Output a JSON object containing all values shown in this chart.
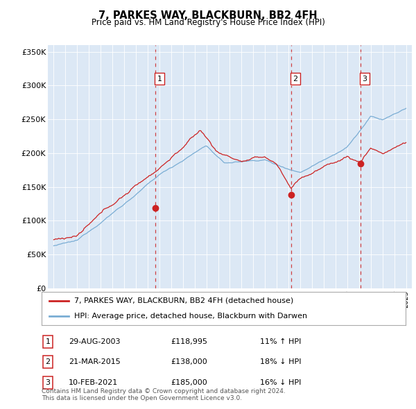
{
  "title": "7, PARKES WAY, BLACKBURN, BB2 4FH",
  "subtitle": "Price paid vs. HM Land Registry's House Price Index (HPI)",
  "ylim": [
    0,
    360000
  ],
  "yticks": [
    0,
    50000,
    100000,
    150000,
    200000,
    250000,
    300000,
    350000
  ],
  "ytick_labels": [
    "£0",
    "£50K",
    "£100K",
    "£150K",
    "£200K",
    "£250K",
    "£300K",
    "£350K"
  ],
  "hpi_color": "#7aadd4",
  "price_color": "#cc2222",
  "transaction_color": "#cc2222",
  "background_chart": "#dce8f5",
  "background_fig": "#ffffff",
  "transactions": [
    {
      "label": "1",
      "date": "29-AUG-2003",
      "price": 118995,
      "pct": "11%",
      "dir": "↑",
      "x_year": 2003.66
    },
    {
      "label": "2",
      "date": "21-MAR-2015",
      "price": 138000,
      "pct": "18%",
      "dir": "↓",
      "x_year": 2015.22
    },
    {
      "label": "3",
      "date": "10-FEB-2021",
      "price": 185000,
      "pct": "16%",
      "dir": "↓",
      "x_year": 2021.12
    }
  ],
  "legend_price_label": "7, PARKES WAY, BLACKBURN, BB2 4FH (detached house)",
  "legend_hpi_label": "HPI: Average price, detached house, Blackburn with Darwen",
  "footer": "Contains HM Land Registry data © Crown copyright and database right 2024.\nThis data is licensed under the Open Government Licence v3.0.",
  "xlim_start": 1994.5,
  "xlim_end": 2025.5
}
